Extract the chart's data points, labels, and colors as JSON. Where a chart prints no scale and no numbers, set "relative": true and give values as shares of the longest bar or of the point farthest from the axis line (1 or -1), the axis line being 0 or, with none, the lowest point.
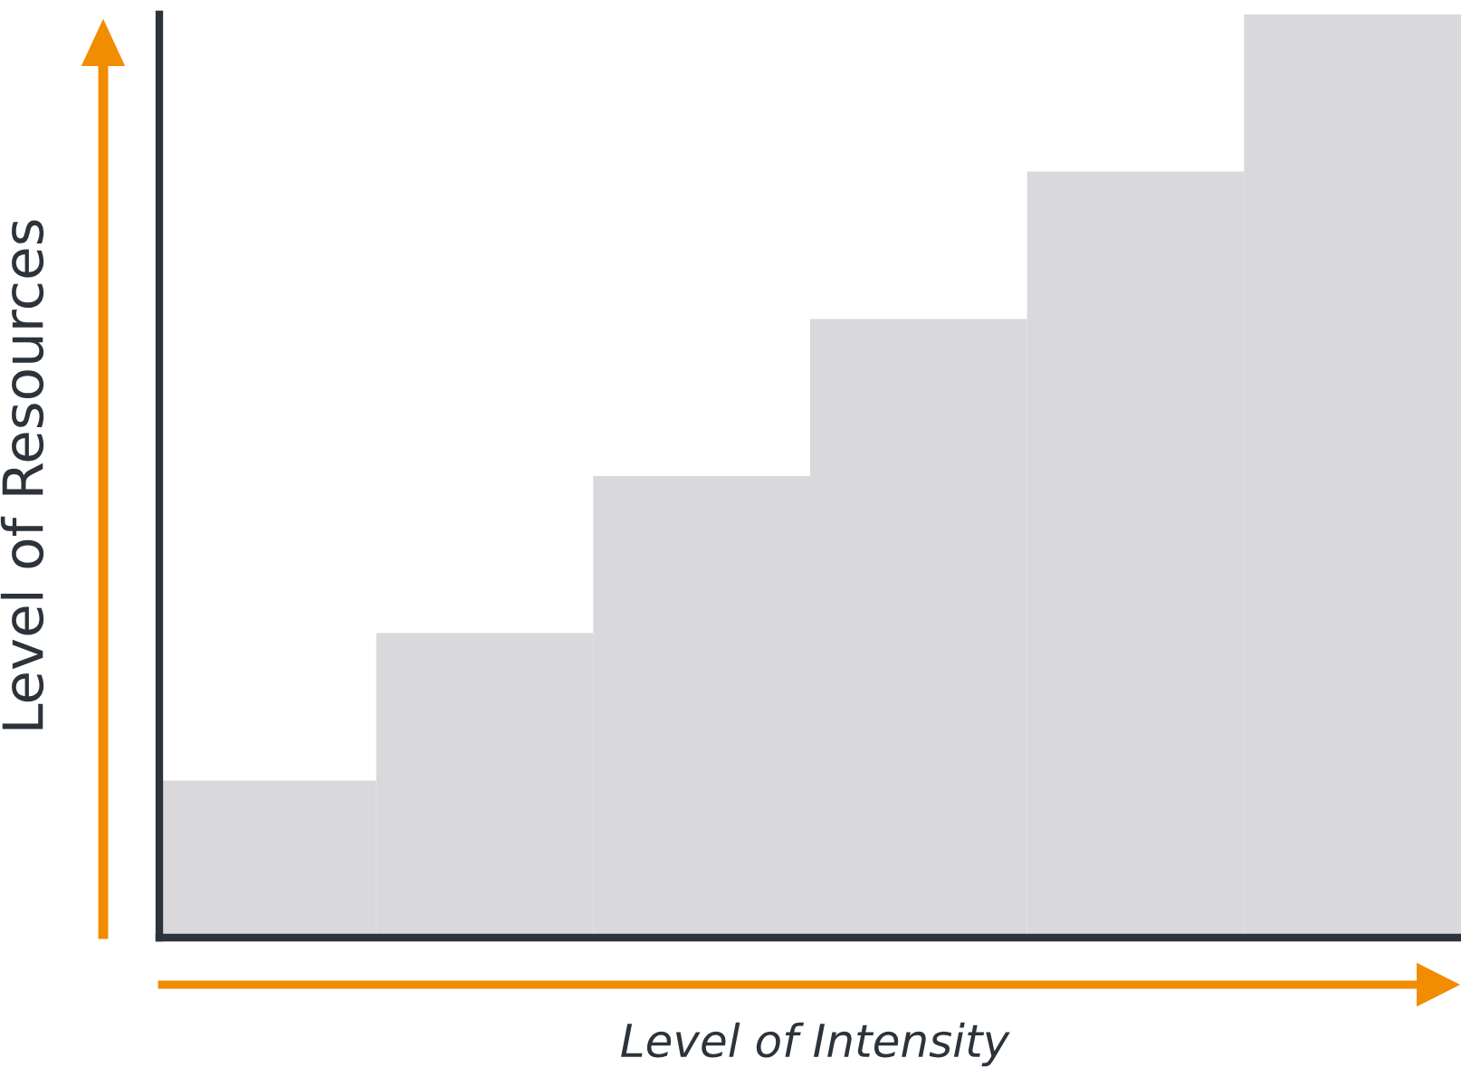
{
  "chart_data": {
    "type": "bar",
    "relative": true,
    "xlabel": "Level of Intensity",
    "ylabel": "Level of Resources",
    "categories": [
      null,
      null,
      null,
      null,
      null,
      null
    ],
    "values": [
      0.17,
      0.33,
      0.5,
      0.67,
      0.83,
      1
    ],
    "color": "#d9d9db",
    "grid": false,
    "legend": false
  }
}
